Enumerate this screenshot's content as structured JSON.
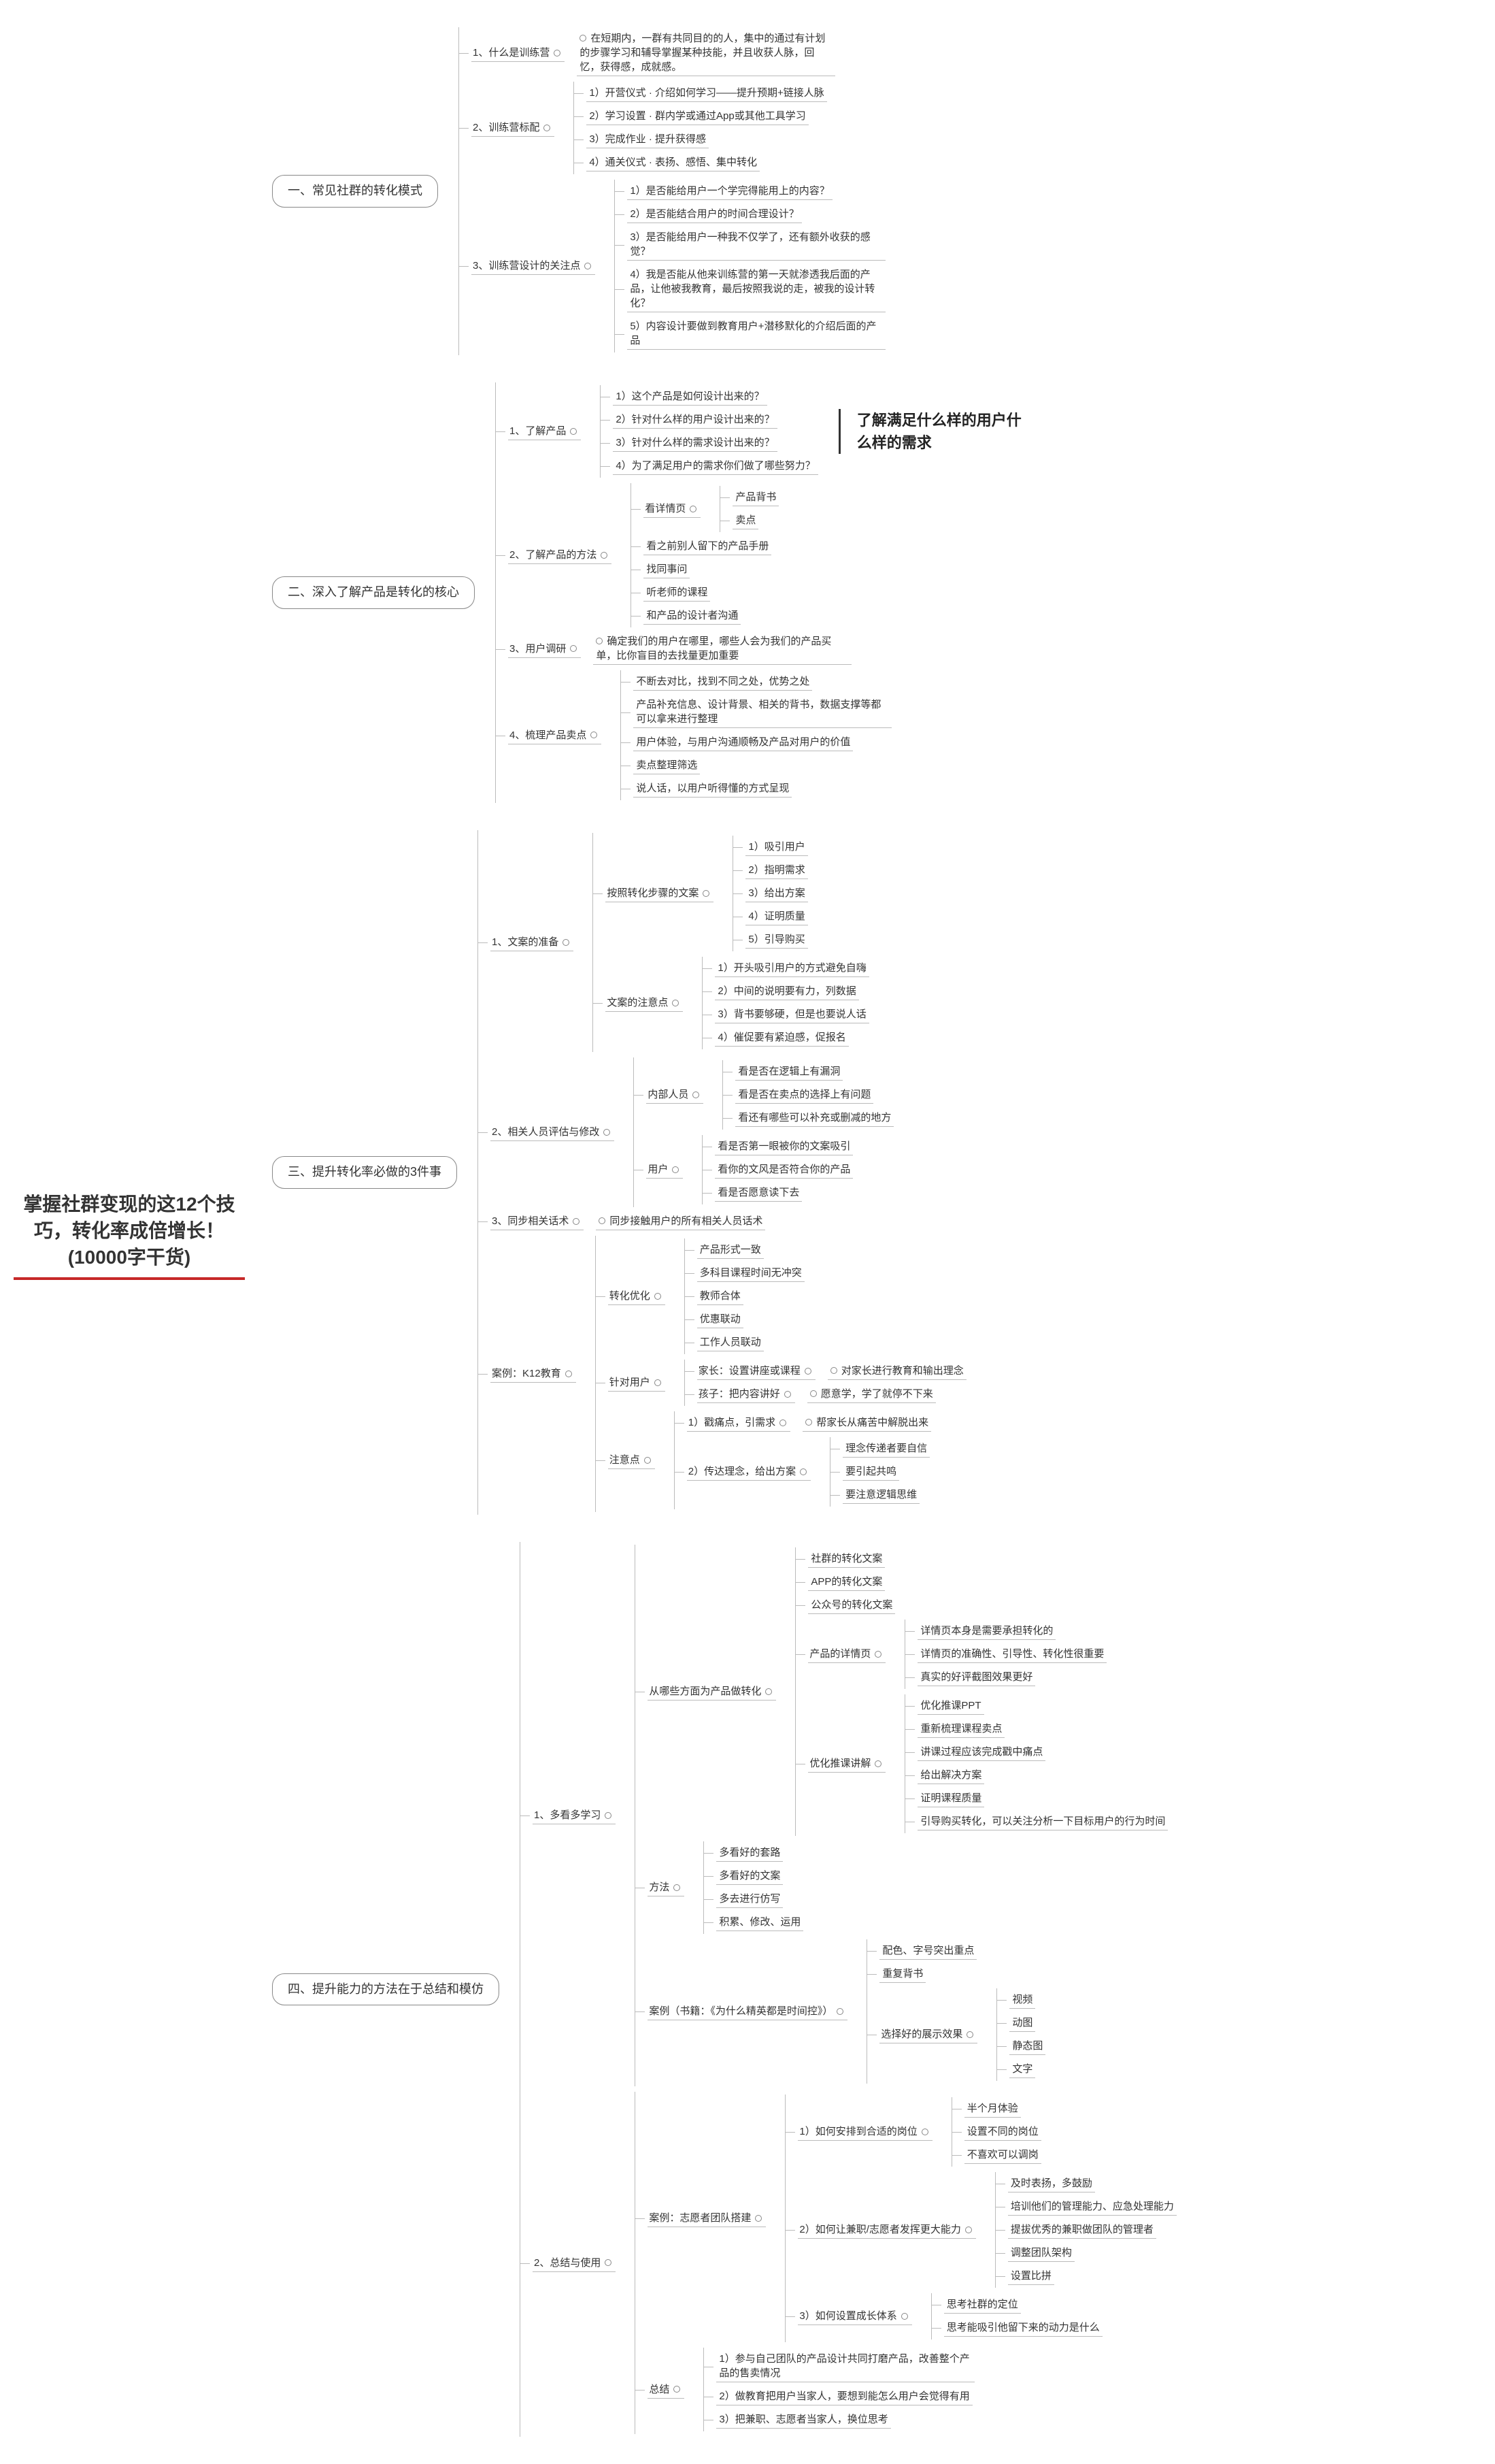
{
  "root": "掌握社群变现的这12个技巧，转化率成倍增长！(10000字干货)",
  "annotation": "了解满足什么样的用户什么样的需求",
  "colors": {
    "rootUnderline": "#c62828",
    "border": "#888888",
    "line": "#bbbbbb",
    "text": "#333333",
    "bg": "#ffffff"
  },
  "branches": [
    {
      "label": "一、常见社群的转化模式",
      "items": [
        {
          "label": "1、什么是训练营",
          "leaf": "在短期内，一群有共同目的的人，集中的通过有计划的步骤学习和辅导掌握某种技能，并且收获人脉，回忆，获得感，成就感。"
        },
        {
          "label": "2、训练营标配",
          "children": [
            "1）开营仪式 · 介绍如何学习——提升预期+链接人脉",
            "2）学习设置 · 群内学或通过App或其他工具学习",
            "3）完成作业 · 提升获得感",
            "4）通关仪式 · 表扬、感悟、集中转化"
          ]
        },
        {
          "label": "3、训练营设计的关注点",
          "children": [
            "1）是否能给用户一个学完得能用上的内容？",
            "2）是否能结合用户的时间合理设计？",
            "3）是否能给用户一种我不仅学了，还有额外收获的感觉？",
            "4）我是否能从他来训练营的第一天就渗透我后面的产品，让他被我教育，最后按照我说的走，被我的设计转化？",
            "5）内容设计要做到教育用户+潜移默化的介绍后面的产品"
          ]
        }
      ]
    },
    {
      "label": "二、深入了解产品是转化的核心",
      "items": [
        {
          "label": "1、了解产品",
          "children": [
            "1）这个产品是如何设计出来的？",
            "2）针对什么样的用户设计出来的？",
            "3）针对什么样的需求设计出来的？",
            "4）为了满足用户的需求你们做了哪些努力？"
          ],
          "annotate": true
        },
        {
          "label": "2、了解产品的方法",
          "nested": [
            {
              "label": "看详情页",
              "children": [
                "产品背书",
                "卖点"
              ]
            },
            {
              "leaf": "看之前别人留下的产品手册"
            },
            {
              "leaf": "找同事问"
            },
            {
              "leaf": "听老师的课程"
            },
            {
              "leaf": "和产品的设计者沟通"
            }
          ]
        },
        {
          "label": "3、用户调研",
          "leaf": "确定我们的用户在哪里，哪些人会为我们的产品买单，比你盲目的去找量更加重要"
        },
        {
          "label": "4、梳理产品卖点",
          "children": [
            "不断去对比，找到不同之处，优势之处",
            "产品补充信息、设计背景、相关的背书，数据支撑等都可以拿来进行整理",
            "用户体验，与用户沟通顺畅及产品对用户的价值",
            "卖点整理筛选",
            "说人话，以用户听得懂的方式呈现"
          ]
        }
      ]
    },
    {
      "label": "三、提升转化率必做的3件事",
      "items": [
        {
          "label": "1、文案的准备",
          "nested": [
            {
              "label": "按照转化步骤的文案",
              "children": [
                "1）吸引用户",
                "2）指明需求",
                "3）给出方案",
                "4）证明质量",
                "5）引导购买"
              ]
            },
            {
              "label": "文案的注意点",
              "children": [
                "1）开头吸引用户的方式避免自嗨",
                "2）中间的说明要有力，列数据",
                "3）背书要够硬，但是也要说人话",
                "4）催促要有紧迫感，促报名"
              ]
            }
          ]
        },
        {
          "label": "2、相关人员评估与修改",
          "nested": [
            {
              "label": "内部人员",
              "children": [
                "看是否在逻辑上有漏洞",
                "看是否在卖点的选择上有问题",
                "看还有哪些可以补充或删减的地方"
              ]
            },
            {
              "label": "用户",
              "children": [
                "看是否第一眼被你的文案吸引",
                "看你的文风是否符合你的产品",
                "看是否愿意读下去"
              ]
            }
          ]
        },
        {
          "label": "3、同步相关话术",
          "leaf": "同步接触用户的所有相关人员话术"
        },
        {
          "label": "案例：K12教育",
          "nested": [
            {
              "label": "转化优化",
              "children": [
                "产品形式一致",
                "多科目课程时间无冲突",
                "教师合体",
                "优惠联动",
                "工作人员联动"
              ]
            },
            {
              "label": "针对用户",
              "nested2": [
                {
                  "label": "家长：设置讲座或课程",
                  "leaf": "对家长进行教育和输出理念"
                },
                {
                  "label": "孩子：把内容讲好",
                  "leaf": "愿意学，学了就停不下来"
                }
              ]
            },
            {
              "label": "注意点",
              "nested2": [
                {
                  "label": "1）戳痛点，引需求",
                  "leaf": "帮家长从痛苦中解脱出来"
                },
                {
                  "label": "2）传达理念，给出方案",
                  "children": [
                    "理念传递者要自信",
                    "要引起共鸣",
                    "要注意逻辑思维"
                  ]
                }
              ]
            }
          ]
        }
      ]
    },
    {
      "label": "四、提升能力的方法在于总结和模仿",
      "items": [
        {
          "label": "1、多看多学习",
          "nested": [
            {
              "label": "从哪些方面为产品做转化",
              "nested2": [
                {
                  "leaf": "社群的转化文案"
                },
                {
                  "leaf": "APP的转化文案"
                },
                {
                  "leaf": "公众号的转化文案"
                },
                {
                  "label": "产品的详情页",
                  "children": [
                    "详情页本身是需要承担转化的",
                    "详情页的准确性、引导性、转化性很重要",
                    "真实的好评截图效果更好"
                  ]
                },
                {
                  "label": "优化推课讲解",
                  "children": [
                    "优化推课PPT",
                    "重新梳理课程卖点",
                    "讲课过程应该完成戳中痛点",
                    "给出解决方案",
                    "证明课程质量",
                    "引导购买转化，可以关注分析一下目标用户的行为时间"
                  ]
                }
              ]
            },
            {
              "label": "方法",
              "children": [
                "多看好的套路",
                "多看好的文案",
                "多去进行仿写",
                "积累、修改、运用"
              ]
            },
            {
              "label": "案例（书籍：《为什么精英都是时间控》）",
              "nested2": [
                {
                  "leaf": "配色、字号突出重点"
                },
                {
                  "leaf": "重复背书"
                },
                {
                  "label": "选择好的展示效果",
                  "children": [
                    "视频",
                    "动图",
                    "静态图",
                    "文字"
                  ]
                }
              ]
            }
          ]
        },
        {
          "label": "2、总结与使用",
          "nested": [
            {
              "label": "案例：志愿者团队搭建",
              "nested2": [
                {
                  "label": "1）如何安排到合适的岗位",
                  "children": [
                    "半个月体验",
                    "设置不同的岗位",
                    "不喜欢可以调岗"
                  ]
                },
                {
                  "label": "2）如何让兼职/志愿者发挥更大能力",
                  "children": [
                    "及时表扬，多鼓励",
                    "培训他们的管理能力、应急处理能力",
                    "提拔优秀的兼职做团队的管理者",
                    "调整团队架构",
                    "设置比拼"
                  ]
                },
                {
                  "label": "3）如何设置成长体系",
                  "children": [
                    "思考社群的定位",
                    "思考能吸引他留下来的动力是什么"
                  ]
                }
              ]
            },
            {
              "label": "总结",
              "children": [
                "1）参与自己团队的产品设计共同打磨产品，改善整个产品的售卖情况",
                "2）做教育把用户当家人，要想到能怎么用户会觉得有用",
                "3）把兼职、志愿者当家人，换位思考"
              ]
            }
          ]
        }
      ]
    }
  ]
}
